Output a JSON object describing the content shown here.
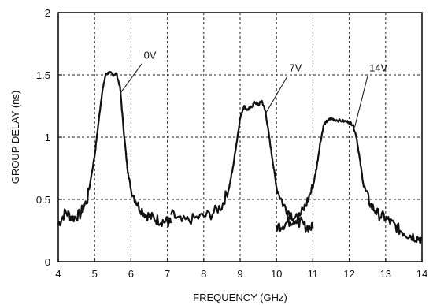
{
  "chart_data": {
    "type": "line",
    "title": "",
    "xlabel": "FREQUENCY (GHz)",
    "ylabel": "GROUP DELAY (ns)",
    "xlim": [
      4,
      14
    ],
    "ylim": [
      0,
      2
    ],
    "x_ticks": [
      4,
      5,
      6,
      7,
      8,
      9,
      10,
      11,
      12,
      13,
      14
    ],
    "y_ticks": [
      0,
      0.5,
      1,
      1.5,
      2
    ],
    "x_tick_labels": [
      "4",
      "5",
      "6",
      "7",
      "8",
      "9",
      "10",
      "11",
      "12",
      "13",
      "14"
    ],
    "y_tick_labels": [
      "0",
      "0.5",
      "1",
      "1.5",
      "2"
    ],
    "grid": "dashed",
    "legend": "none",
    "series": [
      {
        "name": "0V",
        "x": [
          4.0,
          4.2,
          4.4,
          4.6,
          4.8,
          5.0,
          5.1,
          5.2,
          5.3,
          5.4,
          5.5,
          5.6,
          5.7,
          5.8,
          5.9,
          6.0,
          6.2,
          6.4,
          6.6,
          6.8,
          7.0,
          7.1
        ],
        "y": [
          0.3,
          0.4,
          0.35,
          0.38,
          0.5,
          0.85,
          1.1,
          1.35,
          1.5,
          1.52,
          1.5,
          1.51,
          1.4,
          1.05,
          0.75,
          0.58,
          0.45,
          0.38,
          0.35,
          0.33,
          0.32,
          0.31
        ]
      },
      {
        "name": "7V",
        "x": [
          7.1,
          7.4,
          7.8,
          8.2,
          8.5,
          8.7,
          8.8,
          8.9,
          9.0,
          9.1,
          9.2,
          9.3,
          9.4,
          9.5,
          9.6,
          9.7,
          9.8,
          9.9,
          10.0,
          10.2,
          10.4,
          10.6,
          10.8,
          11.0
        ],
        "y": [
          0.38,
          0.32,
          0.35,
          0.38,
          0.45,
          0.6,
          0.75,
          0.95,
          1.15,
          1.25,
          1.22,
          1.24,
          1.28,
          1.26,
          1.29,
          1.2,
          1.0,
          0.8,
          0.6,
          0.45,
          0.38,
          0.33,
          0.28,
          0.27
        ]
      },
      {
        "name": "14V",
        "x": [
          10.0,
          10.2,
          10.4,
          10.6,
          10.8,
          11.0,
          11.1,
          11.2,
          11.3,
          11.4,
          11.5,
          11.6,
          11.8,
          12.0,
          12.1,
          12.2,
          12.3,
          12.4,
          12.6,
          12.8,
          13.0,
          13.2,
          13.4,
          13.6,
          13.8,
          14.0
        ],
        "y": [
          0.28,
          0.3,
          0.33,
          0.35,
          0.45,
          0.6,
          0.75,
          0.95,
          1.1,
          1.13,
          1.15,
          1.14,
          1.13,
          1.12,
          1.1,
          1.0,
          0.8,
          0.6,
          0.45,
          0.38,
          0.35,
          0.3,
          0.25,
          0.22,
          0.2,
          0.18
        ]
      }
    ],
    "annotations": [
      {
        "text": "0V",
        "x": 6.35,
        "y": 1.63,
        "point_x": 5.7,
        "point_y": 1.35
      },
      {
        "text": "7V",
        "x": 10.35,
        "y": 1.53,
        "point_x": 9.68,
        "point_y": 1.18
      },
      {
        "text": "14V",
        "x": 12.55,
        "y": 1.53,
        "point_x": 12.15,
        "point_y": 1.08
      }
    ]
  }
}
